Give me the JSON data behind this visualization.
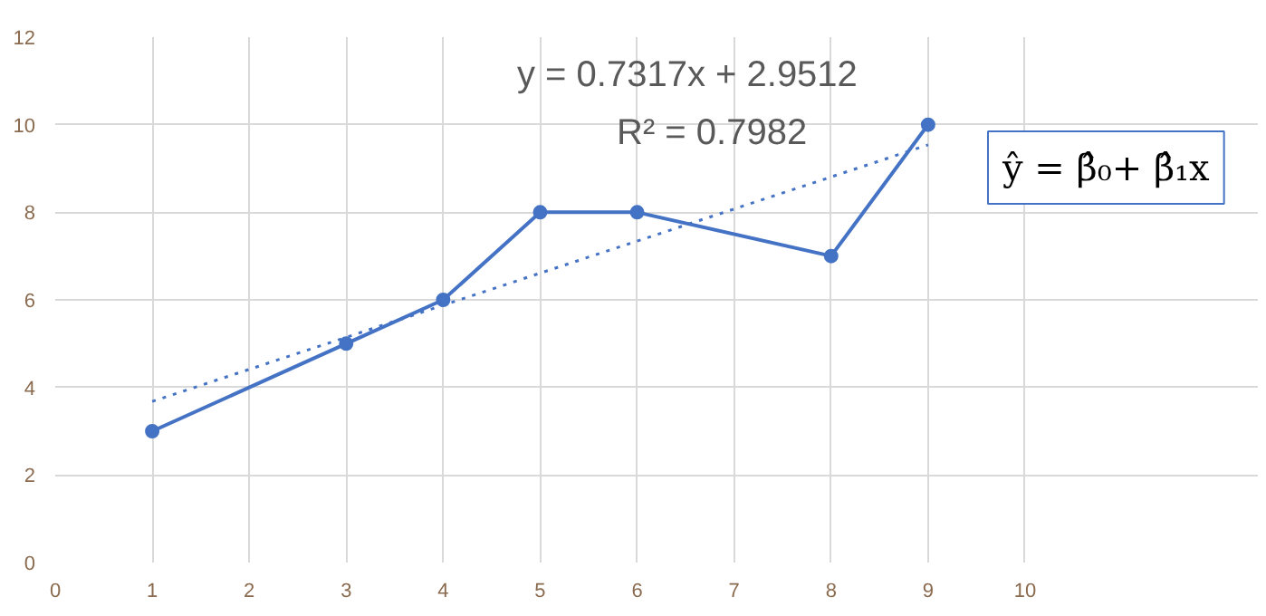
{
  "chart_data": {
    "type": "line",
    "x": [
      1,
      3,
      4,
      5,
      6,
      8,
      9
    ],
    "series": [
      {
        "color": "#4472c4",
        "values": [
          3,
          5,
          6,
          8,
          8,
          7,
          10
        ],
        "marker": "circle",
        "line_style": "solid"
      },
      {
        "type": "line",
        "x": [
          1,
          9
        ],
        "color": "#4472c4",
        "values": [
          3.68,
          9.54
        ],
        "marker": "none",
        "line_style": "dotted"
      }
    ],
    "xlim": [
      0,
      10
    ],
    "xticks": [
      0,
      1,
      2,
      3,
      4,
      5,
      6,
      7,
      8,
      9,
      10
    ],
    "ylim": [
      0,
      12
    ],
    "yticks": [
      0,
      2,
      4,
      6,
      8,
      10,
      12
    ],
    "grid": true,
    "annotations": [
      "y = 0.7317x + 2.9512",
      "R² = 0.7982",
      "ŷ = β̂₀+ β̂₁x"
    ]
  }
}
